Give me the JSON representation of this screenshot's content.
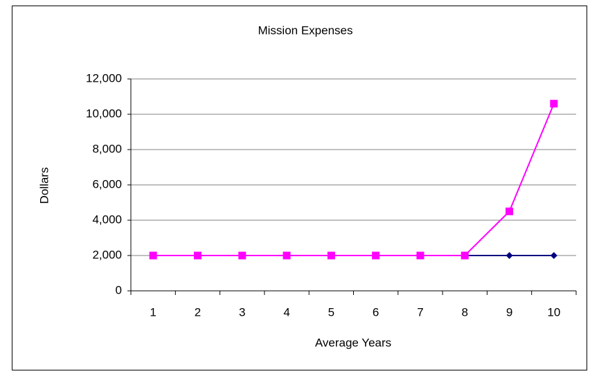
{
  "chart_data": {
    "type": "line",
    "title": "Mission Expenses",
    "x_label": "Average Years",
    "y_label": "Dollars",
    "categories": [
      1,
      2,
      3,
      4,
      5,
      6,
      7,
      8,
      9,
      10
    ],
    "series": [
      {
        "color": "#000080",
        "marker": "diamond",
        "values": [
          2000,
          2000,
          2000,
          2000,
          2000,
          2000,
          2000,
          2000,
          2000,
          2000
        ]
      },
      {
        "color": "#ff00ff",
        "marker": "square",
        "values": [
          2000,
          2000,
          2000,
          2000,
          2000,
          2000,
          2000,
          2000,
          4500,
          10600
        ]
      }
    ],
    "ylim": [
      0,
      12000
    ],
    "yticks": [
      0,
      {
        "value": 2000,
        "label": "2,000"
      },
      {
        "value": 4000,
        "label": "4,000"
      },
      {
        "value": 6000,
        "label": "6,000"
      },
      {
        "value": 8000,
        "label": "8,000"
      },
      {
        "value": 10000,
        "label": "10,000"
      },
      {
        "value": 12000,
        "label": "12,000"
      }
    ],
    "grid": true
  }
}
